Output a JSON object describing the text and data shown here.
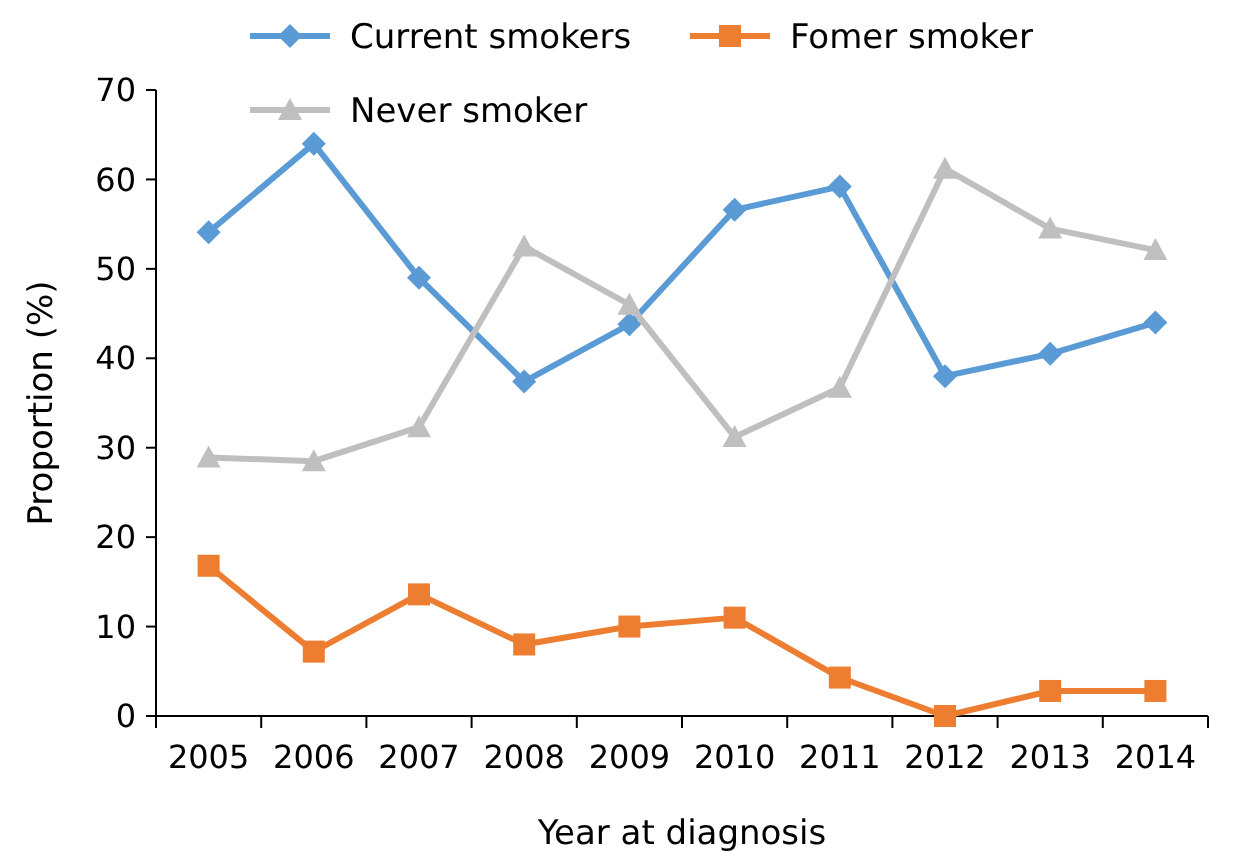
{
  "chart_data": {
    "type": "line",
    "xlabel": "Year at diagnosis",
    "ylabel": "Proportion (%)",
    "categories": [
      "2005",
      "2006",
      "2007",
      "2008",
      "2009",
      "2010",
      "2011",
      "2012",
      "2013",
      "2014"
    ],
    "series": [
      {
        "name": "Current smokers",
        "color": "#5b9bd5",
        "marker": "diamond",
        "values": [
          54.1,
          64,
          49,
          37.4,
          43.8,
          56.6,
          59.2,
          38,
          40.5,
          44
        ]
      },
      {
        "name": "Fomer smoker",
        "color": "#ed7d31",
        "marker": "square",
        "values": [
          16.8,
          7.2,
          13.6,
          8,
          10,
          11,
          4.3,
          0,
          2.8,
          2.8
        ]
      },
      {
        "name": "Never smoker",
        "color": "#bfbfbf",
        "marker": "triangle",
        "values": [
          28.9,
          28.5,
          32.3,
          52.5,
          46,
          31.2,
          36.7,
          61.2,
          54.5,
          52.1
        ]
      }
    ],
    "ylim": [
      0,
      70
    ],
    "yticks": [
      0,
      10,
      20,
      30,
      40,
      50,
      60,
      70
    ],
    "grid": false,
    "legend": "top",
    "line_style": "solid"
  }
}
